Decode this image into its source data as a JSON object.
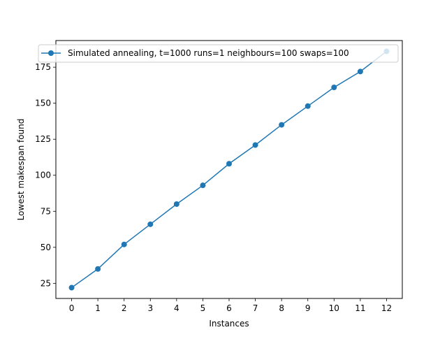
{
  "chart_data": {
    "type": "line",
    "title": "",
    "xlabel": "Instances",
    "ylabel": "Lowest makespan found",
    "xlim": [
      -0.6,
      12.6
    ],
    "ylim": [
      14.5,
      193.5
    ],
    "x_ticks": [
      0,
      1,
      2,
      3,
      4,
      5,
      6,
      7,
      8,
      9,
      10,
      11,
      12
    ],
    "y_ticks": [
      25,
      50,
      75,
      100,
      125,
      150,
      175
    ],
    "grid": false,
    "legend_position": "top-right",
    "series": [
      {
        "name": "Simulated annealing, t=1000 runs=1 neighbours=100 swaps=100",
        "color": "#1f77b4",
        "marker": "circle",
        "x": [
          0,
          1,
          2,
          3,
          4,
          5,
          6,
          7,
          8,
          9,
          10,
          11,
          12
        ],
        "y": [
          22,
          35,
          52,
          66,
          80,
          93,
          108,
          121,
          135,
          148,
          161,
          172,
          186
        ]
      }
    ]
  }
}
